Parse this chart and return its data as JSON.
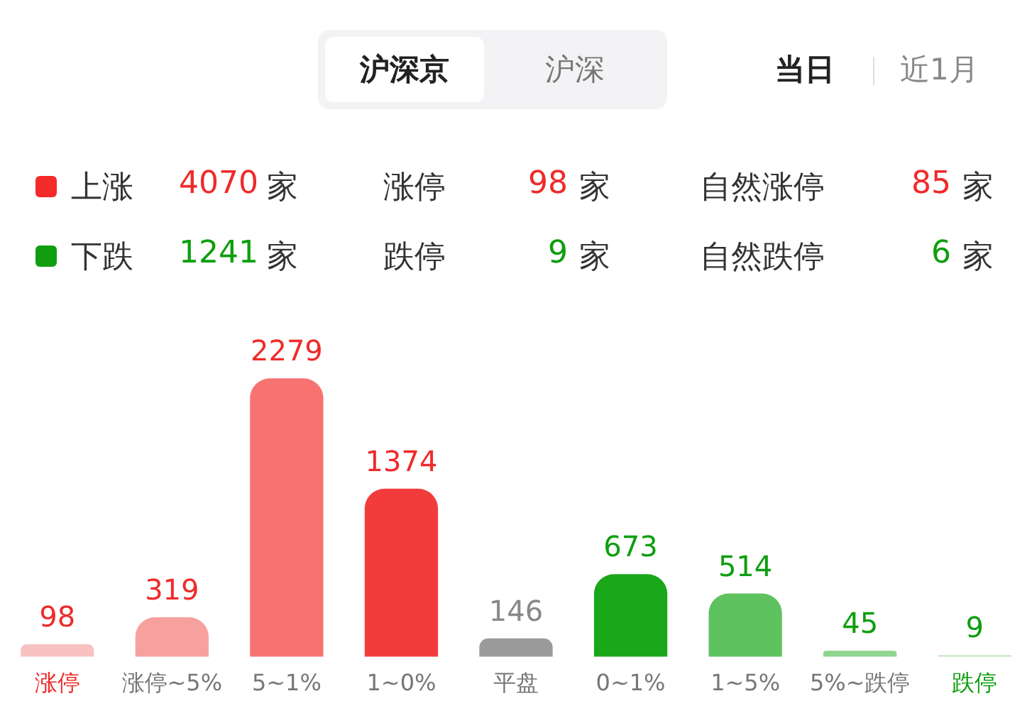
{
  "chart_data": {
    "type": "bar",
    "categories": [
      "涨停",
      "涨停~5%",
      "5~1%",
      "1~0%",
      "平盘",
      "0~1%",
      "1~5%",
      "5%~跌停",
      "跌停"
    ],
    "values": [
      98,
      319,
      2279,
      1374,
      146,
      673,
      514,
      45,
      9
    ],
    "colors": [
      "#f9c2c2",
      "#f7a19f",
      "#f77371",
      "#f23c3c",
      "#9a9a9a",
      "#1aa71a",
      "#5ec25e",
      "#8fd58f",
      "#bce6bc"
    ],
    "data_labels": true,
    "legend": false,
    "grid": false,
    "annotations": [
      "沪深京",
      "沪深",
      "当日",
      "近1月",
      "上涨",
      "4070",
      "家",
      "涨停",
      "98",
      "家",
      "自然涨停",
      "85",
      "家",
      "下跌",
      "1241",
      "家",
      "跌停",
      "9",
      "家",
      "自然跌停",
      "6",
      "家"
    ]
  }
}
